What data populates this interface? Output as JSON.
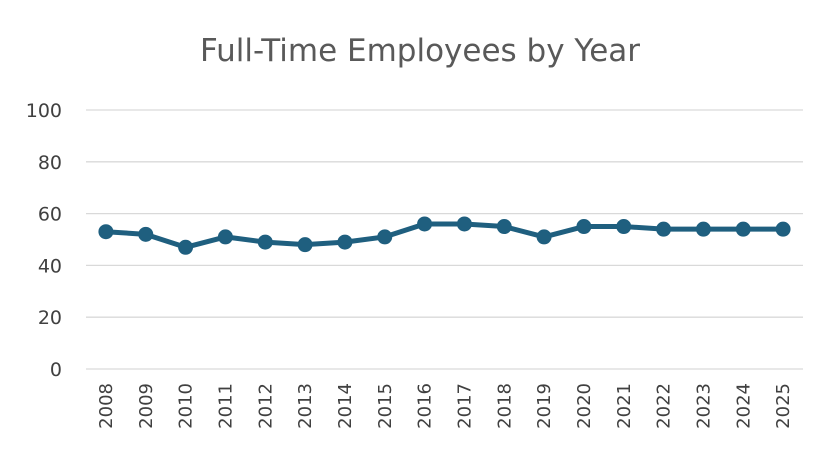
{
  "chart_data": {
    "type": "line",
    "title": "Full-Time Employees by Year",
    "xlabel": "",
    "ylabel": "",
    "categories": [
      "2008",
      "2009",
      "2010",
      "2011",
      "2012",
      "2013",
      "2014",
      "2015",
      "2016",
      "2017",
      "2018",
      "2019",
      "2020",
      "2021",
      "2022",
      "2023",
      "2024",
      "2025"
    ],
    "series": [
      {
        "values": [
          53,
          52,
          47,
          51,
          49,
          48,
          49,
          51,
          56,
          56,
          55,
          51,
          55,
          55,
          54,
          54,
          54,
          54
        ]
      }
    ],
    "ylim": [
      0,
      100
    ],
    "yticks": [
      "0",
      "20",
      "40",
      "60",
      "80",
      "100"
    ],
    "grid": true,
    "legend": "none",
    "colors": {
      "line": "#1f5f7f",
      "grid": "#d9d9d9",
      "text": "#404040",
      "title": "#595959"
    }
  }
}
